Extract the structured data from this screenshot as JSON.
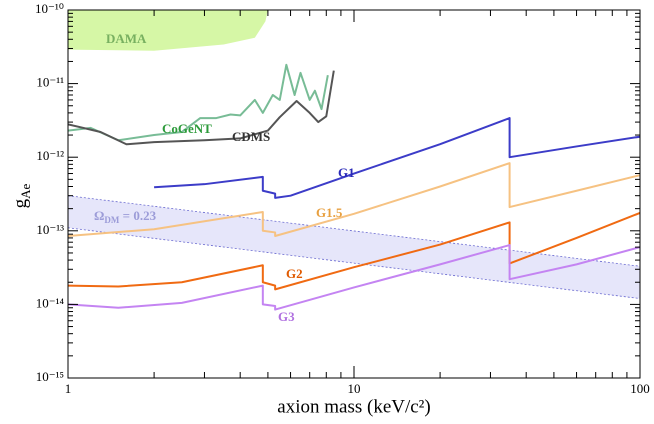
{
  "chart_data": {
    "type": "line",
    "xlabel": "axion mass (keV/c²)",
    "ylabel": "g",
    "ylabel_subscript": "Ae",
    "xscale": "log",
    "yscale": "log",
    "xlim": [
      1,
      100
    ],
    "ylim": [
      1e-15,
      1e-10
    ],
    "xticks": [
      1,
      10,
      100
    ],
    "yticks": [
      {
        "value": 1e-15,
        "label": "10⁻¹⁵"
      },
      {
        "value": 1e-14,
        "label": "10⁻¹⁴"
      },
      {
        "value": 1e-13,
        "label": "10⁻¹³"
      },
      {
        "value": 1e-12,
        "label": "10⁻¹²"
      },
      {
        "value": 1e-11,
        "label": "10⁻¹¹"
      },
      {
        "value": 1e-10,
        "label": "10⁻¹⁰"
      }
    ],
    "band": {
      "x": [
        1,
        100
      ],
      "upper": [
        3e-13,
        3.3e-14
      ],
      "lower": [
        1.1e-13,
        1.2e-14
      ],
      "color": "#e6e6fa",
      "line_color": "#6a6ad0"
    },
    "band_label": {
      "symbol": "Ω",
      "subscript": "DM",
      "text": " = 0.23",
      "color": "#9c9cd8"
    },
    "series": [
      {
        "name": "DAMA",
        "kind": "area",
        "color": "#d6f7a6",
        "label_color": "#78b060",
        "x": [
          1,
          2,
          3.5,
          4.5,
          4.9,
          5.0
        ],
        "values": [
          2.9e-11,
          2.8e-11,
          3.4e-11,
          4.2e-11,
          7e-11,
          1e-10
        ]
      },
      {
        "name": "CoGeNT",
        "color": "#78bc96",
        "label_color": "#2c9a3a",
        "x": [
          1,
          1.2,
          1.5,
          2,
          2.5,
          2.9,
          3.3,
          3.7,
          4,
          4.5,
          4.8,
          5.2,
          5.5,
          5.8,
          6.2,
          6.5,
          7,
          7.3,
          7.7,
          8.1
        ],
        "values": [
          2.3e-12,
          2.5e-12,
          1.7e-12,
          2e-12,
          2.2e-12,
          3.4e-12,
          3.4e-12,
          3.8e-12,
          3.7e-12,
          6e-12,
          4e-12,
          7e-12,
          6e-12,
          1.8e-11,
          7e-12,
          1.4e-11,
          6e-12,
          8e-12,
          4.5e-12,
          1.3e-11
        ]
      },
      {
        "name": "CDMS",
        "color": "#555555",
        "label_color": "#333333",
        "x": [
          1,
          1.3,
          1.6,
          2,
          3,
          4,
          5,
          5.5,
          6.3,
          7,
          7.5,
          8,
          8.5
        ],
        "values": [
          2.8e-12,
          2.2e-12,
          1.5e-12,
          1.6e-12,
          1.7e-12,
          1.8e-12,
          2.3e-12,
          3.5e-12,
          5.8e-12,
          4e-12,
          3e-12,
          3.6e-12,
          1.5e-11
        ]
      },
      {
        "name": "G1",
        "color": "#3c3cc8",
        "label_color": "#2a2ab8",
        "x": [
          2,
          3,
          4.8,
          4.8,
          5.3,
          5.3,
          6,
          10,
          20,
          35,
          35,
          60,
          100
        ],
        "values": [
          3.9e-13,
          4.3e-13,
          5.4e-13,
          3.5e-13,
          3.2e-13,
          2.8e-13,
          3e-13,
          6e-13,
          1.5e-12,
          3.4e-12,
          1e-12,
          1.4e-12,
          1.9e-12
        ]
      },
      {
        "name": "G1.5",
        "color": "#f6c282",
        "label_color": "#e8a040",
        "x": [
          1,
          2,
          4.8,
          4.8,
          5.3,
          5.3,
          10,
          20,
          35,
          35,
          60,
          100
        ],
        "values": [
          8.5e-14,
          1.05e-13,
          1.8e-13,
          1e-13,
          9.5e-14,
          8.5e-14,
          1.7e-13,
          4e-13,
          8.3e-13,
          2.1e-13,
          3.5e-13,
          5.7e-13
        ]
      },
      {
        "name": "G2",
        "color": "#f06a12",
        "label_color": "#e05a00",
        "x": [
          1,
          1.5,
          2.5,
          4.8,
          4.8,
          5.3,
          5.3,
          10,
          20,
          35,
          35,
          60,
          100
        ],
        "values": [
          1.8e-14,
          1.75e-14,
          2e-14,
          3.4e-14,
          2e-14,
          1.8e-14,
          1.6e-14,
          3.2e-14,
          6.5e-14,
          1.3e-13,
          3.6e-14,
          8e-14,
          1.75e-13
        ]
      },
      {
        "name": "G3",
        "color": "#c484f2",
        "label_color": "#b070e0",
        "x": [
          1,
          1.5,
          2.5,
          4.8,
          4.8,
          5.3,
          5.3,
          10,
          20,
          35,
          35,
          60,
          100
        ],
        "values": [
          1e-14,
          9e-15,
          1.05e-14,
          1.8e-14,
          1e-14,
          9.5e-15,
          8.5e-15,
          1.7e-14,
          3.5e-14,
          6.4e-14,
          2.2e-14,
          3.5e-14,
          6e-14
        ]
      }
    ]
  }
}
